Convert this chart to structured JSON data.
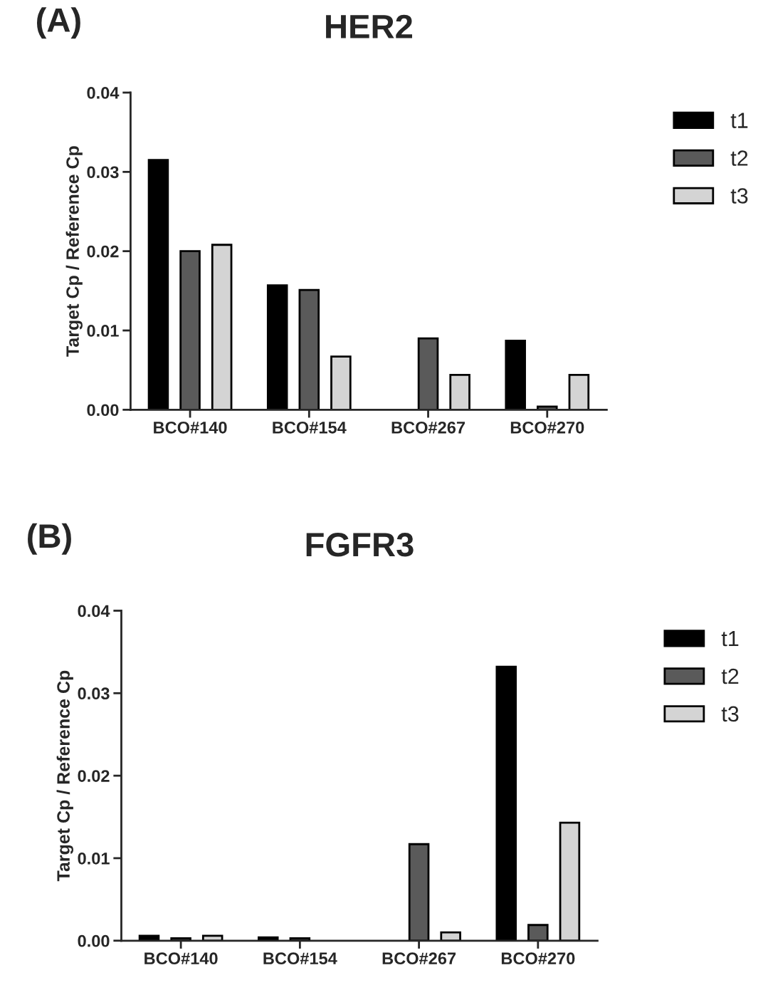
{
  "chart_data": [
    {
      "type": "bar",
      "title": "HER2",
      "annotations": [
        "(A)"
      ],
      "ylabel": "Target Cp / Reference Cp",
      "categories": [
        "BCO#140",
        "BCO#154",
        "BCO#267",
        "BCO#270"
      ],
      "series": [
        {
          "name": "t1",
          "color": "#000000",
          "values": [
            0.0315,
            0.0157,
            null,
            0.0087
          ]
        },
        {
          "name": "t2",
          "color": "#5a5a5a",
          "values": [
            0.02,
            0.0151,
            0.009,
            0.0004
          ]
        },
        {
          "name": "t3",
          "color": "#d4d4d4",
          "values": [
            0.0208,
            0.0067,
            0.0044,
            0.0044
          ]
        }
      ],
      "ylim": [
        0,
        0.04
      ],
      "yticks": [
        {
          "value": 0,
          "label": "0.00"
        },
        {
          "value": 0.01,
          "label": "0.01"
        },
        {
          "value": 0.02,
          "label": "0.02"
        },
        {
          "value": 0.03,
          "label": "0.03"
        },
        {
          "value": 0.04,
          "label": "0.04"
        }
      ],
      "legend": "right",
      "grid": false
    },
    {
      "type": "bar",
      "title": "FGFR3",
      "annotations": [
        "(B)"
      ],
      "ylabel": "Target Cp / Reference Cp",
      "categories": [
        "BCO#140",
        "BCO#154",
        "BCO#267",
        "BCO#270"
      ],
      "series": [
        {
          "name": "t1",
          "color": "#000000",
          "values": [
            0.0006,
            0.0004,
            null,
            0.0332
          ]
        },
        {
          "name": "t2",
          "color": "#5a5a5a",
          "values": [
            0.0003,
            0.0003,
            0.0117,
            0.0019
          ]
        },
        {
          "name": "t3",
          "color": "#d4d4d4",
          "values": [
            0.0006,
            null,
            0.001,
            0.0143
          ]
        }
      ],
      "ylim": [
        0,
        0.04
      ],
      "yticks": [
        {
          "value": 0,
          "label": "0.00"
        },
        {
          "value": 0.01,
          "label": "0.01"
        },
        {
          "value": 0.02,
          "label": "0.02"
        },
        {
          "value": 0.03,
          "label": "0.03"
        },
        {
          "value": 0.04,
          "label": "0.04"
        }
      ],
      "legend": "right",
      "grid": false
    }
  ]
}
